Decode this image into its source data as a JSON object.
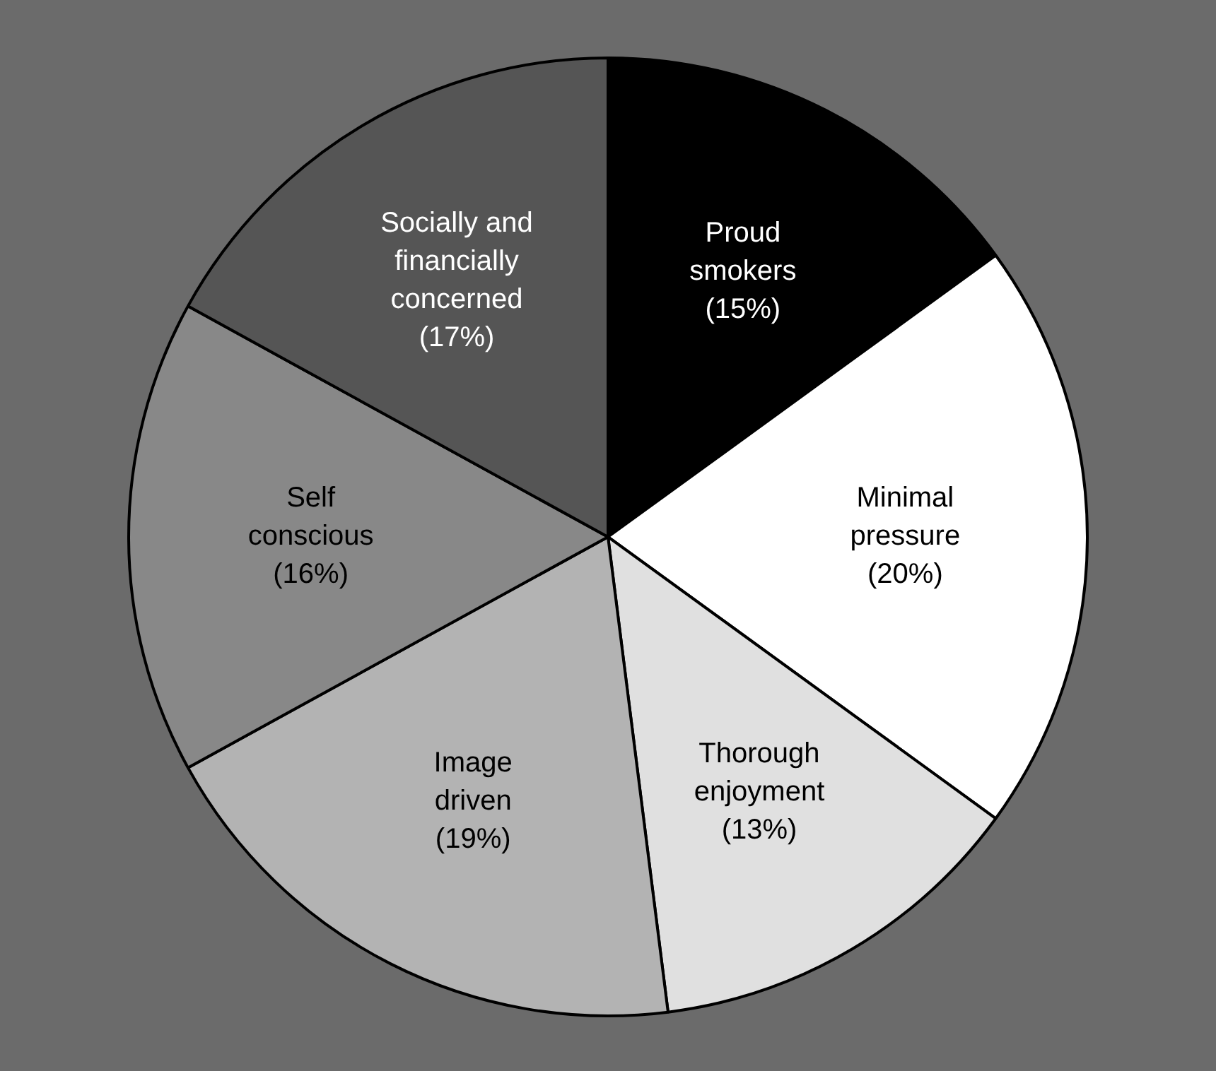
{
  "chart_data": {
    "type": "pie",
    "categories": [
      "Proud\nsmokers",
      "Minimal\npressure",
      "Thorough\nenjoyment",
      "Image\ndriven",
      "Self\nconscious",
      "Socially and\nfinancially\nconcerned"
    ],
    "values": [
      15,
      20,
      13,
      19,
      16,
      17
    ],
    "colors": [
      "#000000",
      "#ffffff",
      "#e0e0e0",
      "#b3b3b3",
      "#888888",
      "#555555"
    ],
    "value_labels": [
      "(15%)",
      "(20%)",
      "(13%)",
      "(19%)",
      "(16%)",
      "(17%)"
    ],
    "legend": false
  }
}
